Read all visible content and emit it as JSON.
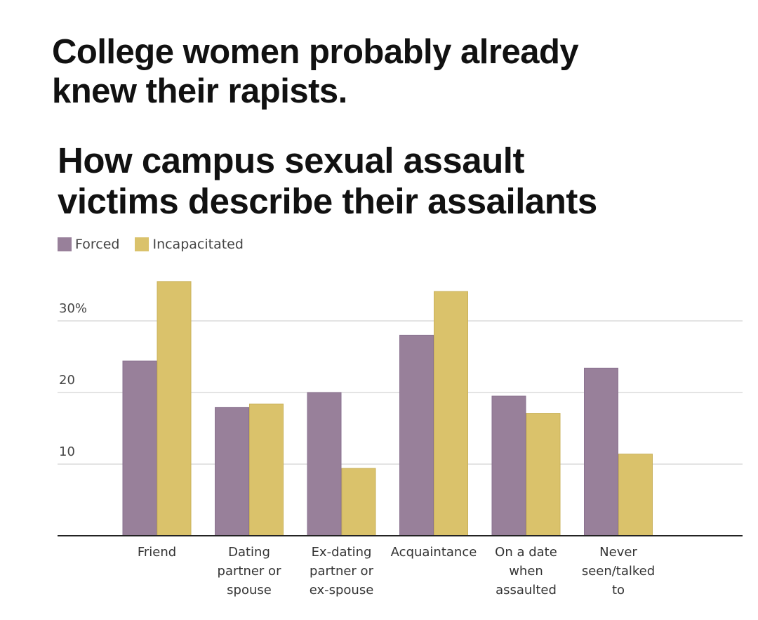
{
  "headline": [
    "College women probably already",
    "knew their rapists."
  ],
  "chart_data": {
    "type": "bar",
    "title": "How campus sexual assault victims describe their assailants",
    "title_lines": [
      "How campus sexual assault",
      "victims describe their assailants"
    ],
    "categories": [
      [
        "Friend"
      ],
      [
        "Dating",
        "partner or",
        "spouse"
      ],
      [
        "Ex-dating",
        "partner or",
        "ex-spouse"
      ],
      [
        "Acquaintance"
      ],
      [
        "On a date",
        "when",
        "assaulted"
      ],
      [
        "Never",
        "seen/talked",
        "to"
      ]
    ],
    "series": [
      {
        "name": "Forced",
        "color": "#98809a",
        "values": [
          24.4,
          17.9,
          20.0,
          28.0,
          19.5,
          23.4
        ]
      },
      {
        "name": "Incapacitated",
        "color": "#dac26b",
        "values": [
          35.5,
          18.4,
          9.4,
          34.1,
          17.1,
          11.4
        ]
      }
    ],
    "yticks": [
      {
        "value": 10,
        "label": "10"
      },
      {
        "value": 20,
        "label": "20"
      },
      {
        "value": 30,
        "label": "30%"
      }
    ],
    "ylim": [
      0,
      37
    ],
    "xlabel": "",
    "ylabel": "",
    "grid": true,
    "legend_position": "top-left"
  }
}
